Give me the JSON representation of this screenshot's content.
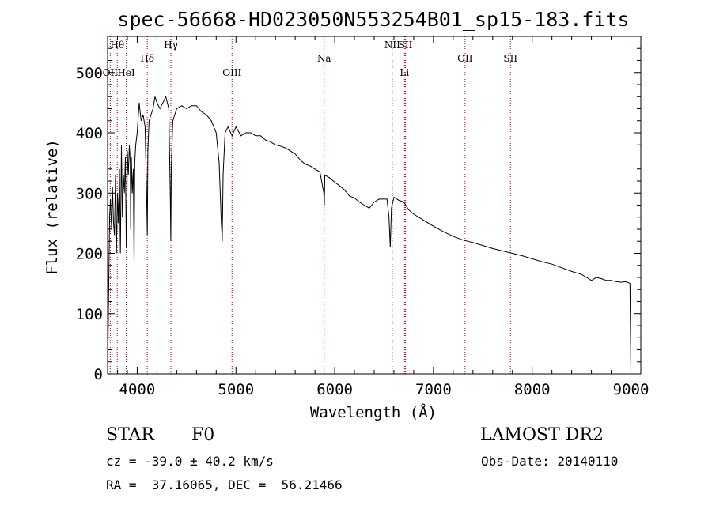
{
  "chart_data": {
    "type": "line",
    "title": "spec-56668-HD023050N553254B01_sp15-183.fits",
    "xlabel": "Wavelength (Å)",
    "ylabel": "Flux (relative)",
    "xlim": [
      3700,
      9100
    ],
    "ylim": [
      0,
      560
    ],
    "xticks": [
      4000,
      5000,
      6000,
      7000,
      8000,
      9000
    ],
    "yticks": [
      0,
      100,
      200,
      300,
      400,
      500
    ],
    "series": [
      {
        "name": "flux",
        "x": [
          3700,
          3710,
          3720,
          3730,
          3740,
          3750,
          3760,
          3770,
          3780,
          3790,
          3800,
          3810,
          3820,
          3830,
          3840,
          3850,
          3860,
          3870,
          3880,
          3889,
          3895,
          3900,
          3910,
          3920,
          3930,
          3934,
          3940,
          3950,
          3960,
          3968,
          3975,
          3985,
          4000,
          4020,
          4040,
          4060,
          4080,
          4095,
          4102,
          4108,
          4120,
          4140,
          4160,
          4180,
          4200,
          4230,
          4260,
          4290,
          4320,
          4335,
          4340,
          4345,
          4360,
          4400,
          4450,
          4500,
          4550,
          4600,
          4650,
          4700,
          4750,
          4800,
          4830,
          4850,
          4861,
          4870,
          4890,
          4920,
          4960,
          5000,
          5050,
          5100,
          5150,
          5200,
          5250,
          5300,
          5350,
          5400,
          5450,
          5500,
          5550,
          5600,
          5650,
          5700,
          5750,
          5800,
          5850,
          5890,
          5895,
          5900,
          5950,
          6000,
          6050,
          6100,
          6150,
          6200,
          6250,
          6300,
          6350,
          6400,
          6450,
          6500,
          6530,
          6550,
          6563,
          6575,
          6600,
          6650,
          6700,
          6750,
          6800,
          6900,
          7000,
          7100,
          7200,
          7300,
          7400,
          7500,
          7600,
          7700,
          7800,
          7900,
          8000,
          8100,
          8200,
          8300,
          8400,
          8500,
          8550,
          8600,
          8650,
          8700,
          8750,
          8800,
          8850,
          8900,
          8950,
          8990,
          9000
        ],
        "values": [
          0,
          120,
          260,
          290,
          240,
          310,
          250,
          230,
          330,
          200,
          300,
          250,
          340,
          200,
          380,
          260,
          330,
          300,
          360,
          210,
          270,
          370,
          330,
          380,
          350,
          240,
          360,
          300,
          340,
          180,
          350,
          380,
          400,
          450,
          420,
          430,
          410,
          300,
          230,
          370,
          420,
          430,
          440,
          460,
          450,
          440,
          450,
          460,
          440,
          290,
          220,
          340,
          420,
          440,
          445,
          440,
          445,
          445,
          435,
          430,
          420,
          400,
          350,
          260,
          220,
          330,
          400,
          410,
          395,
          410,
          395,
          400,
          400,
          395,
          395,
          388,
          385,
          380,
          378,
          375,
          370,
          365,
          355,
          348,
          345,
          340,
          335,
          300,
          280,
          330,
          325,
          318,
          312,
          305,
          295,
          292,
          285,
          280,
          275,
          285,
          290,
          290,
          290,
          260,
          210,
          275,
          293,
          288,
          285,
          272,
          265,
          255,
          245,
          236,
          228,
          222,
          218,
          213,
          208,
          204,
          200,
          196,
          191,
          186,
          182,
          176,
          170,
          165,
          160,
          155,
          160,
          158,
          155,
          155,
          153,
          152,
          153,
          150,
          0
        ]
      }
    ],
    "emission_lines": [
      {
        "label": "Hθ",
        "x": 3798,
        "row": 0
      },
      {
        "label": "OII",
        "x": 3727,
        "row": 1
      },
      {
        "label": "HeI",
        "x": 3889,
        "row": 1
      },
      {
        "label": "Hδ",
        "x": 4102,
        "row": 2
      },
      {
        "label": "Hγ",
        "x": 4341,
        "row": 0
      },
      {
        "label": "OIII",
        "x": 4960,
        "row": 1
      },
      {
        "label": "Na",
        "x": 5893,
        "row": 2
      },
      {
        "label": "NII",
        "x": 6583,
        "row": 0
      },
      {
        "label": "SII",
        "x": 6717,
        "row": 0
      },
      {
        "label": "Li",
        "x": 6707,
        "row": 1
      },
      {
        "label": "OII",
        "x": 7320,
        "row": 2
      },
      {
        "label": "SII",
        "x": 7780,
        "row": 2
      }
    ]
  },
  "info": {
    "object_class": "STAR",
    "subclass": "F0",
    "survey": "LAMOST DR2",
    "cz": "cz = -39.0 ± 40.2 km/s",
    "obs_date": "Obs-Date: 20140110",
    "coords": "RA =  37.16065, DEC =  56.21466"
  },
  "colors": {
    "line": "#000000",
    "marker_lines": "#c00000"
  }
}
